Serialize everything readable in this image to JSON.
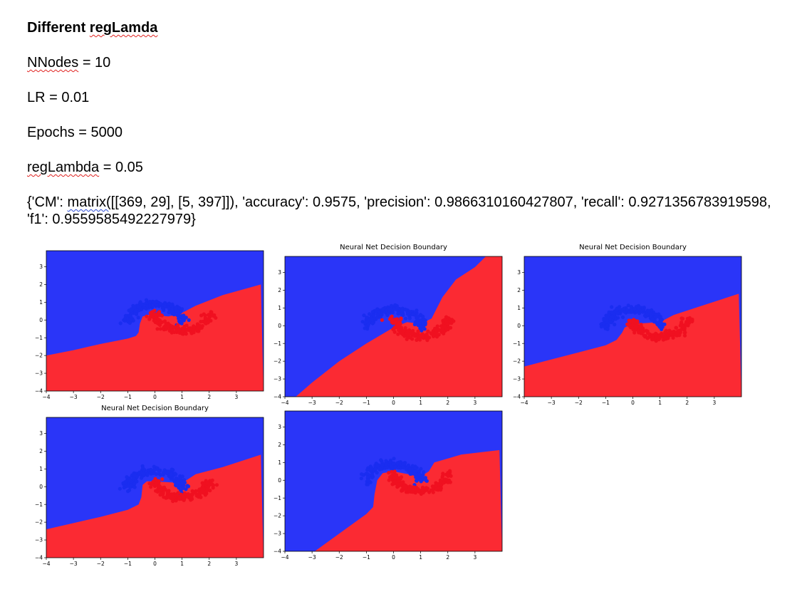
{
  "doc": {
    "heading_prefix": "Different ",
    "heading_word": "regLamda",
    "nnodes_key": "NNodes",
    "nnodes_rest": " = 10",
    "lr": "LR = 0.01",
    "epochs": "Epochs = 5000",
    "reglambda_key": "regLambda",
    "reglambda_rest": " = 0.05",
    "result_prefix": "{'CM': ",
    "result_matrix": "matrix(",
    "result_rest": "[[369,  29], [5, 397]]), 'accuracy': 0.9575, 'precision': 0.9866310160427807, 'recall': 0.9271356783919598, 'f1': 0.9559585492227979}"
  },
  "colors": {
    "blue_region": "#2a35f8",
    "red_region": "#fb2a33",
    "blue_points": "#1a2df0",
    "red_points": "#f01020"
  },
  "plots": [
    {
      "title": "",
      "x_ticks": [
        "-4",
        "-3",
        "-2",
        "-1",
        "0",
        "1",
        "2",
        "3"
      ],
      "y_ticks": [
        "3",
        "2",
        "1",
        "0",
        "-1",
        "-2",
        "-3",
        "-4"
      ]
    },
    {
      "title": "Neural Net Decision Boundary",
      "x_ticks": [
        "-4",
        "-3",
        "-2",
        "-1",
        "0",
        "1",
        "2",
        "3"
      ],
      "y_ticks": [
        "3",
        "2",
        "1",
        "0",
        "-1",
        "-2",
        "-3",
        "-4"
      ]
    },
    {
      "title": "Neural Net Decision Boundary",
      "x_ticks": [
        "-4",
        "-3",
        "-2",
        "-1",
        "0",
        "1",
        "2",
        "3"
      ],
      "y_ticks": [
        "3",
        "2",
        "1",
        "0",
        "-1",
        "-2",
        "-3",
        "-4"
      ]
    },
    {
      "title": "Neural Net Decision Boundary",
      "x_ticks": [
        "-4",
        "-3",
        "-2",
        "-1",
        "0",
        "1",
        "2",
        "3"
      ],
      "y_ticks": [
        "3",
        "2",
        "1",
        "0",
        "-1",
        "-2",
        "-3",
        "-4"
      ]
    },
    {
      "title": "",
      "x_ticks": [
        "-4",
        "-3",
        "-2",
        "-1",
        "0",
        "1",
        "2",
        "3"
      ],
      "y_ticks": [
        "3",
        "2",
        "1",
        "0",
        "-1",
        "-2",
        "-3",
        "-4"
      ]
    }
  ]
}
